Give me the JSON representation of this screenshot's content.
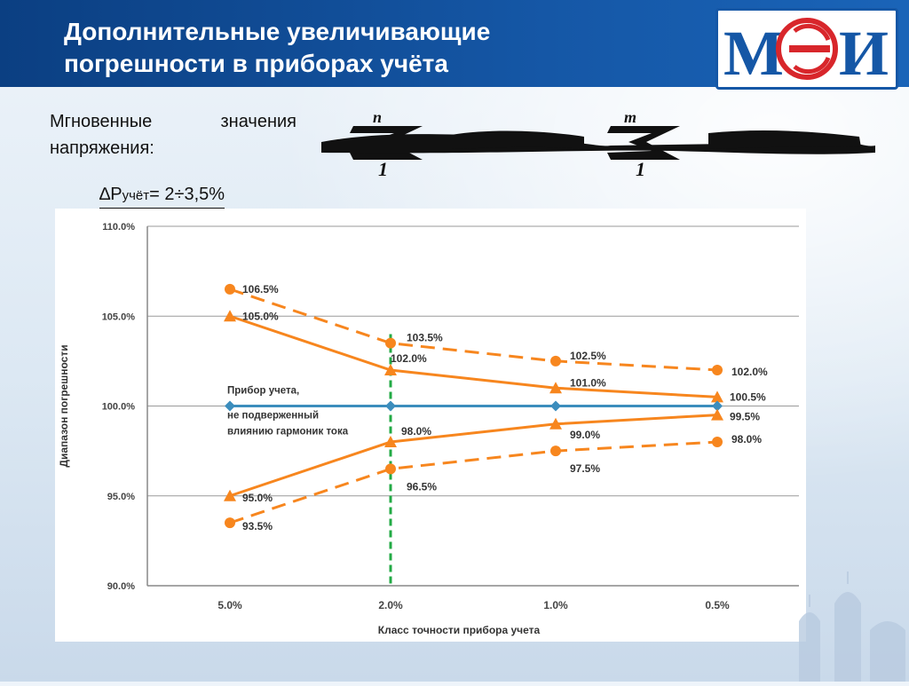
{
  "header": {
    "title_line1": "Дополнительные увеличивающие",
    "title_line2": "погрешности в приборах учёта"
  },
  "logo": {
    "text": "МЭИ"
  },
  "body": {
    "intro": "Мгновенные значения напряжения:",
    "delta_symbol": "∆P",
    "delta_sub": "учёт",
    "delta_value": "= 2÷3,5%"
  },
  "chart_data": {
    "type": "line",
    "xlabel": "Класс точности прибора учета",
    "ylabel": "Диапазон погрешности",
    "categories": [
      "5.0%",
      "2.0%",
      "1.0%",
      "0.5%"
    ],
    "ylim": [
      90,
      110
    ],
    "yticks": [
      90,
      95,
      100,
      105,
      110
    ],
    "ytick_labels": [
      "90.0%",
      "95.0%",
      "100.0%",
      "105.0%",
      "110.0%"
    ],
    "grid": "horizontal",
    "series": [
      {
        "values": [
          106.5,
          103.5,
          102.5,
          102.0
        ],
        "labels": [
          "106.5%",
          "103.5%",
          "102.5%",
          "102.0%"
        ],
        "style": "dashed",
        "marker": "circle",
        "color": "#f7861e"
      },
      {
        "values": [
          105.0,
          102.0,
          101.0,
          100.5
        ],
        "labels": [
          "105.0%",
          "102.0%",
          "101.0%",
          "100.5%"
        ],
        "style": "solid",
        "marker": "triangle",
        "color": "#f7861e"
      },
      {
        "name": "Прибор учета, не подверженный влиянию гармоник тока",
        "values": [
          100,
          100,
          100,
          100
        ],
        "style": "solid",
        "marker": "diamond",
        "color": "#3c8dbd"
      },
      {
        "values": [
          95.0,
          98.0,
          99.0,
          99.5
        ],
        "labels": [
          "95.0%",
          "98.0%",
          "99.0%",
          "99.5%"
        ],
        "style": "solid",
        "marker": "triangle",
        "color": "#f7861e"
      },
      {
        "values": [
          93.5,
          96.5,
          97.5,
          98.0
        ],
        "labels": [
          "93.5%",
          "96.5%",
          "97.5%",
          "98.0%"
        ],
        "style": "dashed",
        "marker": "circle",
        "color": "#f7861e"
      }
    ],
    "legend_text_lines": [
      "Прибор учета,",
      "не подверженный",
      "влиянию гармоник тока"
    ],
    "vertical_marker": {
      "category": "2.0%",
      "color": "#22aa44",
      "style": "dashed"
    }
  }
}
